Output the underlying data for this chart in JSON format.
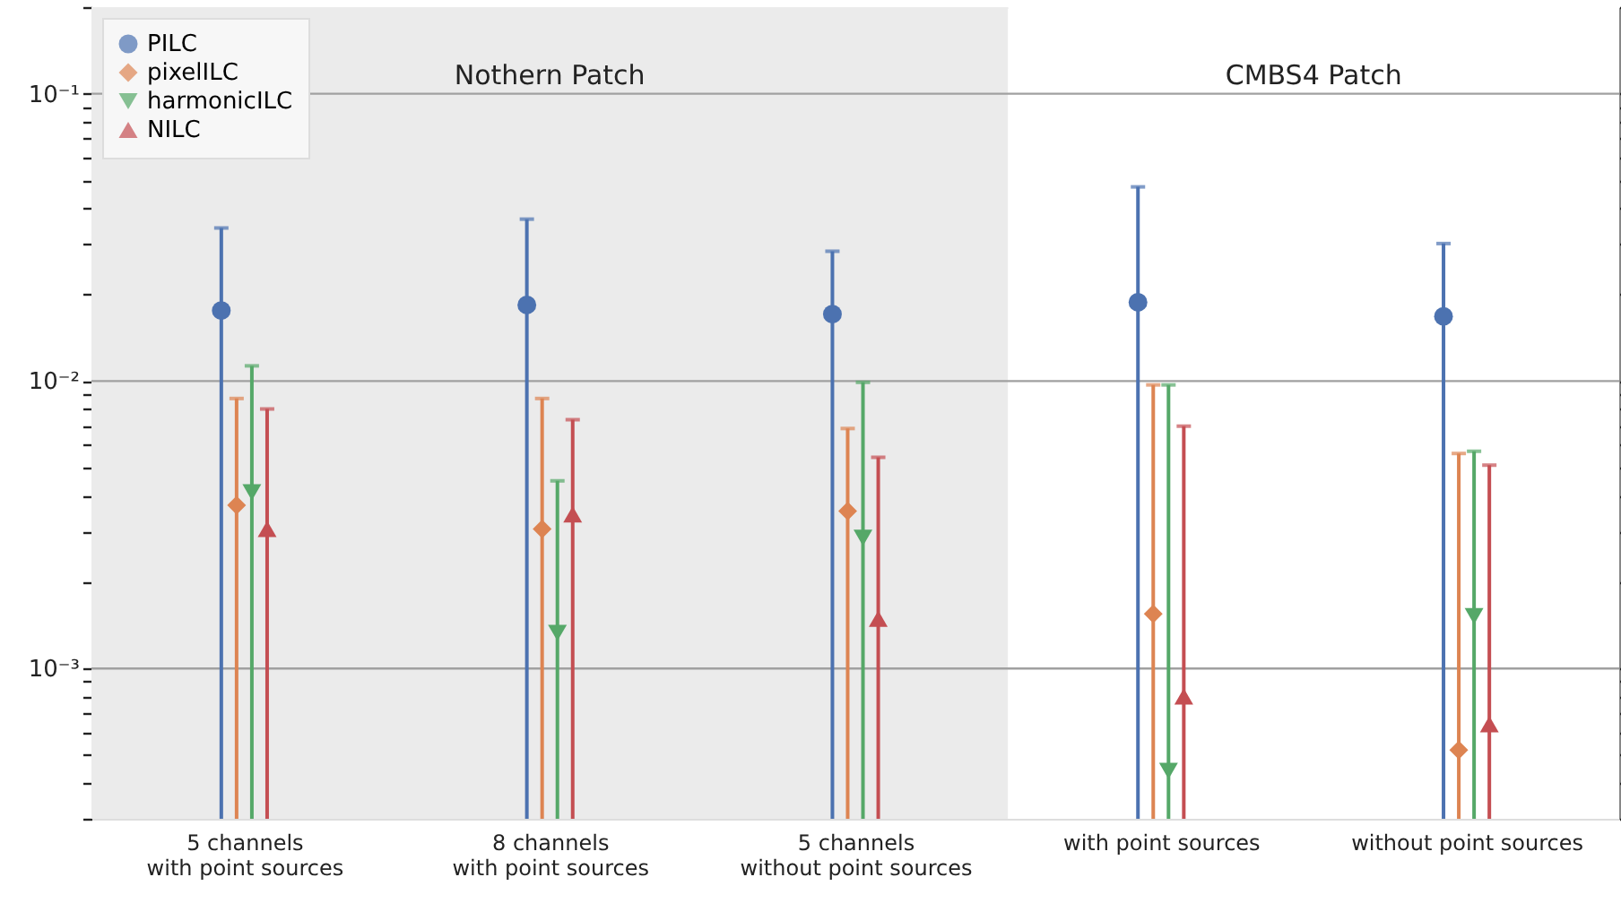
{
  "chart_data": {
    "type": "scatter",
    "categories": [
      "5 channels\nwith point sources",
      "8 channels\nwith point sources",
      "5 channels\nwithout point sources",
      "with point sources",
      "without point sources"
    ],
    "series": [
      {
        "name": "PILC",
        "color": "#4c72b0",
        "marker": "circle",
        "values": [
          0.0176,
          0.0184,
          0.0171,
          0.0188,
          0.0168
        ],
        "errors": [
          [
            0.0003,
            0.0341
          ],
          [
            0.0003,
            0.0366
          ],
          [
            0.0003,
            0.0283
          ],
          [
            0.0003,
            0.0474
          ],
          [
            0.0003,
            0.0301
          ]
        ]
      },
      {
        "name": "pixelILC",
        "color": "#dd8452",
        "marker": "diamond",
        "values": [
          0.0037,
          0.00306,
          0.00353,
          0.00155,
          0.00052
        ],
        "errors": [
          [
            0.0003,
            0.0087
          ],
          [
            0.0003,
            0.0087
          ],
          [
            0.0003,
            0.00684
          ],
          [
            0.0003,
            0.0097
          ],
          [
            0.0003,
            0.0056
          ]
        ]
      },
      {
        "name": "harmonicILC",
        "color": "#55a868",
        "marker": "triangle-down",
        "values": [
          0.0041,
          0.00133,
          0.00285,
          0.00044,
          0.00152
        ],
        "errors": [
          [
            0.0003,
            0.0113
          ],
          [
            0.0003,
            0.0045
          ],
          [
            0.0003,
            0.0099
          ],
          [
            0.0003,
            0.0097
          ],
          [
            0.0003,
            0.0057
          ]
        ]
      },
      {
        "name": "NILC",
        "color": "#c44e52",
        "marker": "triangle",
        "values": [
          0.00306,
          0.00344,
          0.00149,
          0.0008,
          0.00064
        ],
        "errors": [
          [
            0.0003,
            0.008
          ],
          [
            0.0003,
            0.00734
          ],
          [
            0.0003,
            0.00543
          ],
          [
            0.0003,
            0.00697
          ],
          [
            0.0003,
            0.0051
          ]
        ]
      }
    ],
    "log": true,
    "ylim": [
      0.0003,
      0.2
    ],
    "yticks": [
      {
        "value": 0.0003,
        "label": null
      },
      {
        "value": 0.0004,
        "label": null
      },
      {
        "value": 0.0005,
        "label": null
      },
      {
        "value": 0.0006,
        "label": null
      },
      {
        "value": 0.0007,
        "label": null
      },
      {
        "value": 0.0008,
        "label": null
      },
      {
        "value": 0.0009,
        "label": null
      },
      {
        "value": 0.001,
        "label": "10⁻³"
      },
      {
        "value": 0.002,
        "label": null
      },
      {
        "value": 0.003,
        "label": null
      },
      {
        "value": 0.004,
        "label": null
      },
      {
        "value": 0.005,
        "label": null
      },
      {
        "value": 0.006,
        "label": null
      },
      {
        "value": 0.007,
        "label": null
      },
      {
        "value": 0.008,
        "label": null
      },
      {
        "value": 0.009,
        "label": null
      },
      {
        "value": 0.01,
        "label": "10⁻²"
      },
      {
        "value": 0.02,
        "label": null
      },
      {
        "value": 0.03,
        "label": null
      },
      {
        "value": 0.04,
        "label": null
      },
      {
        "value": 0.05,
        "label": null
      },
      {
        "value": 0.06,
        "label": null
      },
      {
        "value": 0.07,
        "label": null
      },
      {
        "value": 0.08,
        "label": null
      },
      {
        "value": 0.09,
        "label": null
      },
      {
        "value": 0.1,
        "label": "10⁻¹"
      },
      {
        "value": 0.2,
        "label": null
      }
    ],
    "grid": "y",
    "legend": "top left",
    "bands": [
      {
        "axis": "x",
        "from": "5 channels\nwith point sources",
        "to": "5 channels\nwithout point sources",
        "label": "Nothern Patch",
        "color": "#ebebeb"
      },
      {
        "axis": "x",
        "from": "with point sources",
        "to": "without point sources",
        "label": "CMBS4 Patch",
        "color": "#ffffff"
      }
    ]
  }
}
